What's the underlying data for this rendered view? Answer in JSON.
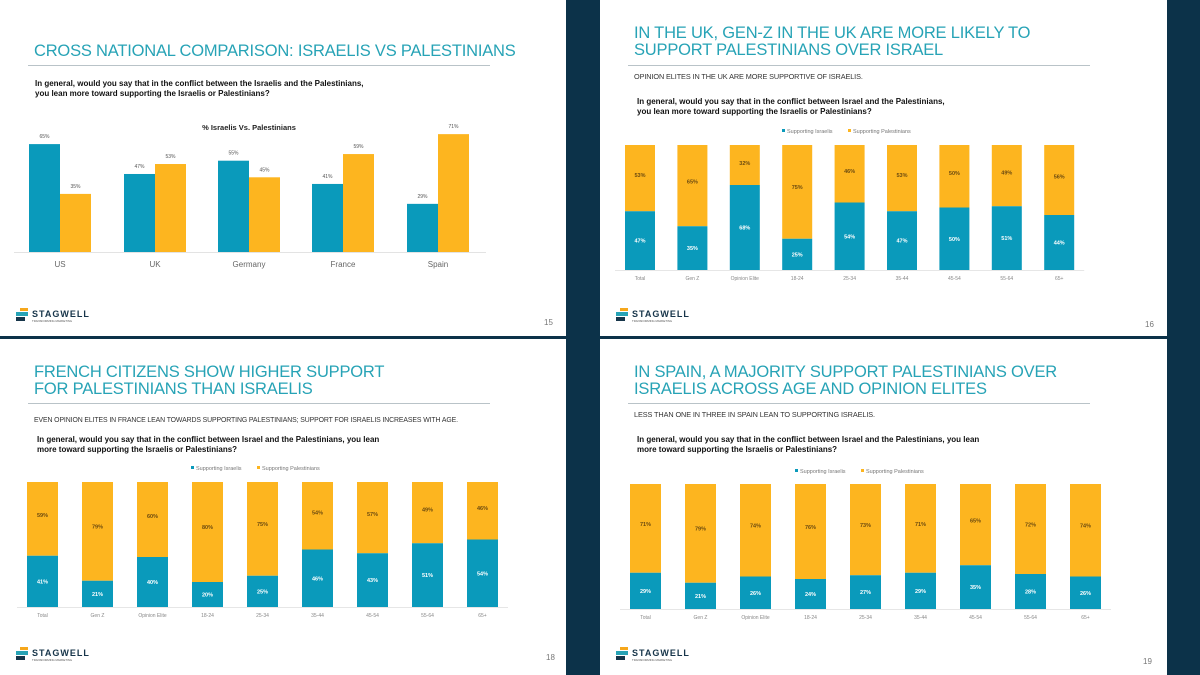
{
  "colors": {
    "israelis": "#0a9abb",
    "palestinians": "#fdb51f",
    "title": "#27a3b6",
    "navy": "#0c3249"
  },
  "logo": {
    "name": "STAGWELL",
    "tagline": "TRANSFORMING MARKETING"
  },
  "slides": [
    {
      "title_lines": [
        "CROSS NATIONAL COMPARISON: ISRAELIS VS PALESTINIANS"
      ],
      "question_lines": [
        "In general, would you say that in the conflict between the Israelis and the Palestinians,",
        " you lean more toward supporting the Israelis or Palestinians?"
      ],
      "page": "15"
    },
    {
      "title_lines": [
        "IN THE UK, GEN-Z  IN THE UK ARE MORE LIKELY TO",
        "SUPPORT PALESTINIANS OVER ISRAEL"
      ],
      "subtitle": "OPINION ELITES IN THE UK ARE MORE SUPPORTIVE OF ISRAELIS.",
      "question_lines": [
        "In general, would you say that in the conflict between Israel and the Palestinians,",
        "you lean more toward supporting the Israelis or Palestinians?"
      ],
      "page": "16"
    },
    {
      "title_lines": [
        "FRENCH CITIZENS SHOW HIGHER SUPPORT",
        "FOR PALESTINIANS THAN ISRAELIS"
      ],
      "subtitle": "EVEN OPINION ELITES IN FRANCE LEAN TOWARDS SUPPORTING PALESTINIANS; SUPPORT FOR ISRAELIS INCREASES WITH AGE.",
      "question_lines": [
        "In general, would you say that in the conflict between Israel and the Palestinians, you lean",
        "more toward supporting the Israelis or Palestinians?"
      ],
      "page": "18"
    },
    {
      "title_lines": [
        "IN SPAIN, A MAJORITY SUPPORT PALESTINIANS OVER",
        "ISRAELIS ACROSS AGE AND OPINION ELITES"
      ],
      "subtitle": "LESS THAN ONE IN THREE IN SPAIN LEAN TO SUPPORTING ISRAELIS.",
      "question_lines": [
        "In general, would you say that in the conflict between Israel and the Palestinians, you lean",
        "more toward supporting the Israelis or Palestinians?"
      ],
      "page": "19"
    }
  ],
  "chart_data": [
    {
      "type": "bar",
      "title": "% Israelis Vs. Palestinians",
      "categories": [
        "US",
        "UK",
        "Germany",
        "France",
        "Spain"
      ],
      "series": [
        {
          "name": "Israelis",
          "values": [
            65,
            47,
            55,
            41,
            29
          ]
        },
        {
          "name": "Palestinians",
          "values": [
            35,
            53,
            45,
            59,
            71
          ]
        }
      ],
      "labels": {
        "Israelis": [
          "65%",
          "47%",
          "55%",
          "41%",
          "29%"
        ],
        "Palestinians": [
          "35%",
          "53%",
          "45%",
          "59%",
          "71%"
        ]
      },
      "ylim": [
        0,
        100
      ],
      "grid": false
    },
    {
      "type": "bar",
      "stacked": true,
      "country": "UK",
      "legend": [
        "Supporting Israelis",
        "Supporting Palestinians"
      ],
      "legend_position": "top",
      "categories": [
        "Total",
        "Gen Z",
        "Opinion Elite",
        "18-24",
        "25-34",
        "35-44",
        "45-54",
        "55-64",
        "65+"
      ],
      "series": [
        {
          "name": "Supporting Israelis",
          "values": [
            47,
            35,
            68,
            25,
            54,
            47,
            50,
            51,
            44
          ]
        },
        {
          "name": "Supporting Palestinians",
          "values": [
            53,
            65,
            32,
            75,
            46,
            53,
            50,
            49,
            56
          ]
        }
      ],
      "labels": {
        "Supporting Israelis": [
          "47%",
          "35%",
          "68%",
          "25%",
          "54%",
          "47%",
          "50%",
          "51%",
          "44%"
        ],
        "Supporting Palestinians": [
          "53%",
          "65%",
          "32%",
          "75%",
          "46%",
          "53%",
          "50%",
          "49%",
          "56%"
        ]
      },
      "ylim": [
        0,
        100
      ]
    },
    {
      "type": "bar",
      "stacked": true,
      "country": "France",
      "legend": [
        "Supporting Israelis",
        "Supporting Palestinians"
      ],
      "legend_position": "top",
      "categories": [
        "Total",
        "Gen Z",
        "Opinion Elite",
        "18-24",
        "25-34",
        "35-44",
        "45-54",
        "55-64",
        "65+"
      ],
      "series": [
        {
          "name": "Supporting Israelis",
          "values": [
            41,
            21,
            40,
            20,
            25,
            46,
            43,
            51,
            54
          ]
        },
        {
          "name": "Supporting Palestinians",
          "values": [
            59,
            79,
            60,
            80,
            75,
            54,
            57,
            49,
            46
          ]
        }
      ],
      "labels": {
        "Supporting Israelis": [
          "41%",
          "21%",
          "40%",
          "20%",
          "25%",
          "46%",
          "43%",
          "51%",
          "54%"
        ],
        "Supporting Palestinians": [
          "59%",
          "79%",
          "60%",
          "80%",
          "75%",
          "54%",
          "57%",
          "49%",
          "46%"
        ]
      },
      "ylim": [
        0,
        100
      ]
    },
    {
      "type": "bar",
      "stacked": true,
      "country": "Spain",
      "legend": [
        "Supporting Israelis",
        "Supporting Palestinians"
      ],
      "legend_position": "top",
      "categories": [
        "Total",
        "Gen Z",
        "Opinion Elite",
        "18-24",
        "25-34",
        "35-44",
        "45-54",
        "55-64",
        "65+"
      ],
      "series": [
        {
          "name": "Supporting Israelis",
          "values": [
            29,
            21,
            26,
            24,
            27,
            29,
            35,
            28,
            26
          ]
        },
        {
          "name": "Supporting Palestinians",
          "values": [
            71,
            79,
            74,
            76,
            73,
            71,
            65,
            72,
            74
          ]
        }
      ],
      "labels": {
        "Supporting Israelis": [
          "29%",
          "21%",
          "26%",
          "24%",
          "27%",
          "29%",
          "35%",
          "28%",
          "26%"
        ],
        "Supporting Palestinians": [
          "71%",
          "79%",
          "74%",
          "76%",
          "73%",
          "71%",
          "65%",
          "72%",
          "74%"
        ]
      },
      "ylim": [
        0,
        100
      ]
    }
  ]
}
